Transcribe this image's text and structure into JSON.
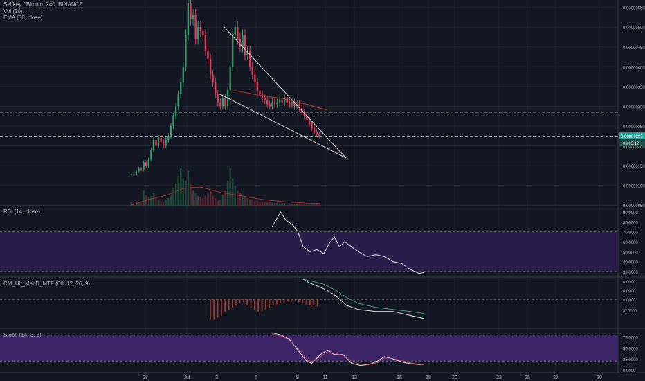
{
  "chart_title": "Selfkey / Bitcoin, 240, BINANCE",
  "chart_colors": {
    "background": "#131722",
    "grid": "#1e2230",
    "axis_text": "#b2b5be",
    "up": "#3d9970",
    "down": "#e0405a",
    "ema": "#c0392b",
    "wedge": "#d6d6d6",
    "rsi_band": "#2a1c4a",
    "stoch_band": "#3b2566",
    "macd_bars": "#a33a2e",
    "price_label": "#26a69a"
  },
  "x_axis": {
    "tick_labels": [
      "28",
      "Jul",
      "3",
      "6",
      "9",
      "11",
      "13",
      "16",
      "18",
      "20",
      "23",
      "25",
      "27",
      "30"
    ]
  },
  "price_panel": {
    "indicators": [
      "Vol (20)",
      "EMA (50, close)"
    ],
    "price_label": "0.00000225",
    "timer_label": "03:05:12",
    "y_ticks": [
      "0.00000550",
      "0.00000500",
      "0.00000450",
      "0.00000400",
      "0.00000350",
      "0.00000300",
      "0.00000250",
      "0.00000200",
      "0.00000150",
      "0.00000100",
      "0.00000050"
    ]
  },
  "rsi_panel": {
    "label": "RSI (14, close)",
    "y_ticks": [
      "90.0000",
      "80.0000",
      "70.0000",
      "60.0000",
      "50.0000",
      "40.0000",
      "30.0000"
    ]
  },
  "macd_panel": {
    "label": "CM_Ult_MacD_MTF (60, 12, 26, 9)",
    "y_ticks": [
      "0.0000",
      "0.0000",
      "0.0000",
      "-0.0000"
    ]
  },
  "stoch_panel": {
    "label": "Stoch (14, 3, 3)",
    "y_ticks": [
      "75.0000",
      "50.0000",
      "25.0000",
      "0.0000"
    ]
  },
  "chart_data": [
    {
      "type": "candlestick",
      "title": "Selfkey / Bitcoin, 240, BINANCE",
      "ylim": [
        5e-07,
        5.6e-06
      ],
      "ema_label": "EMA (50, close)",
      "volume_label": "Vol (20)",
      "close_prices": [
        1.28e-06,
        1.27e-06,
        1.35e-06,
        1.42e-06,
        1.4e-06,
        1.58e-06,
        1.48e-06,
        1.65e-06,
        1.9e-06,
        2.15e-06,
        2e-06,
        2.2e-06,
        2.1e-06,
        2e-06,
        2.15e-06,
        2.25e-06,
        2.5e-06,
        2.75e-06,
        3e-06,
        3.3e-06,
        3.6e-06,
        4e-06,
        4.8e-06,
        5.6e-06,
        5.2e-06,
        5.3e-06,
        4.7e-06,
        5e-06,
        4.9e-06,
        4.8e-06,
        4.4e-06,
        4.2e-06,
        3.8e-06,
        3.6e-06,
        3.3e-06,
        3.1e-06,
        3e-06,
        3.2e-06,
        3e-06,
        3.4e-06,
        4e-06,
        4.8e-06,
        5e-06,
        4.7e-06,
        4.5e-06,
        4.8e-06,
        4.3e-06,
        4.4e-06,
        4e-06,
        3.8e-06,
        3.6e-06,
        3.4e-06,
        3.3e-06,
        3.2e-06,
        3.15e-06,
        3.05e-06,
        3e-06,
        3.1e-06,
        3.05e-06,
        3.1e-06,
        3.15e-06,
        3.1e-06,
        3.2e-06,
        3.1e-06,
        3.05e-06,
        3.1e-06,
        3e-06,
        3.05e-06,
        2.95e-06,
        2.85e-06,
        2.75e-06,
        2.65e-06,
        2.55e-06,
        2.45e-06,
        2.35e-06,
        2.28e-06,
        2.25e-06
      ],
      "ema_points": [
        [
          118,
          3.4e-06
        ],
        [
          130,
          3.3e-06
        ],
        [
          145,
          3.2e-06
        ],
        [
          160,
          3.05e-06
        ],
        [
          172,
          2.9e-06
        ]
      ],
      "volume_scale": [
        0,
        1
      ],
      "volumes": [
        0.08,
        0.06,
        0.07,
        0.05,
        0.06,
        0.3,
        0.22,
        0.18,
        0.2,
        0.25,
        0.15,
        0.12,
        0.1,
        0.08,
        0.12,
        0.15,
        0.2,
        0.35,
        0.45,
        0.6,
        0.75,
        0.55,
        0.5,
        0.7,
        0.45,
        0.3,
        0.25,
        0.2,
        0.18,
        0.15,
        0.2,
        0.25,
        0.3,
        0.2,
        0.15,
        0.1,
        0.12,
        0.22,
        0.3,
        0.5,
        0.75,
        0.55,
        0.4,
        0.3,
        0.25,
        0.2,
        0.18,
        0.15,
        0.12,
        0.12,
        0.1,
        0.1,
        0.08,
        0.08,
        0.08,
        0.07,
        0.07,
        0.06,
        0.06,
        0.06,
        0.05,
        0.05,
        0.05,
        0.05,
        0.04,
        0.04,
        0.04,
        0.04,
        0.03,
        0.03,
        0.04,
        0.03,
        0.03,
        0.03,
        0.03,
        0.03,
        0.02
      ],
      "wedge": {
        "upper": [
          [
            105,
            5.1e-06
          ],
          [
            178,
            2e-06
          ]
        ],
        "lower": [
          [
            96,
            3.45e-06
          ],
          [
            178,
            2e-06
          ]
        ]
      },
      "h_lines": [
        2.85e-06,
        2.23e-06
      ]
    },
    {
      "type": "line",
      "title": "RSI (14, close)",
      "ylim": [
        25,
        95
      ],
      "bands": [
        30,
        70
      ],
      "points": [
        [
          80,
          75
        ],
        [
          85,
          90
        ],
        [
          88,
          82
        ],
        [
          92,
          77
        ],
        [
          95,
          70
        ],
        [
          98,
          55
        ],
        [
          102,
          50
        ],
        [
          106,
          52
        ],
        [
          110,
          48
        ],
        [
          113,
          58
        ],
        [
          116,
          65
        ],
        [
          119,
          55
        ],
        [
          122,
          60
        ],
        [
          126,
          55
        ],
        [
          130,
          50
        ],
        [
          135,
          45
        ],
        [
          140,
          47
        ],
        [
          145,
          45
        ],
        [
          150,
          40
        ],
        [
          155,
          38
        ],
        [
          160,
          32
        ],
        [
          165,
          28
        ],
        [
          168,
          29
        ]
      ]
    },
    {
      "type": "bar",
      "title": "CM_Ult_MacD_MTF (60, 12, 26, 9)",
      "ylim": [
        -1.4,
        1.0
      ],
      "histogram": [
        -1.0,
        -1.0,
        -0.9,
        -0.8,
        -0.6,
        -0.5,
        -0.4,
        -0.3,
        -0.2,
        -0.15,
        -0.3,
        -0.4,
        -0.5,
        -0.6,
        -0.6,
        -0.5,
        -0.4,
        -0.3,
        -0.25,
        -0.2,
        -0.15,
        -0.1,
        -0.1,
        -0.1,
        -0.15,
        -0.2,
        -0.25,
        -0.3,
        -0.3,
        -0.35
      ],
      "macd_line": [
        [
          98,
          1.0
        ],
        [
          102,
          0.8
        ],
        [
          108,
          0.6
        ],
        [
          113,
          0.4
        ],
        [
          118,
          0.1
        ],
        [
          123,
          -0.3
        ],
        [
          130,
          -0.5
        ],
        [
          140,
          -0.6
        ],
        [
          150,
          -0.6
        ],
        [
          160,
          -0.8
        ],
        [
          168,
          -0.95
        ]
      ],
      "signal_line": [
        [
          98,
          1.0
        ],
        [
          103,
          0.9
        ],
        [
          110,
          0.75
        ],
        [
          118,
          0.4
        ],
        [
          123,
          0.1
        ],
        [
          130,
          -0.2
        ],
        [
          140,
          -0.4
        ],
        [
          150,
          -0.5
        ],
        [
          160,
          -0.6
        ],
        [
          168,
          -0.7
        ]
      ]
    },
    {
      "type": "line",
      "title": "Stoch (14, 3, 3)",
      "ylim": [
        -5,
        90
      ],
      "bands": [
        20,
        80
      ],
      "k_points": [
        [
          80,
          85
        ],
        [
          85,
          80
        ],
        [
          90,
          70
        ],
        [
          95,
          45
        ],
        [
          100,
          20
        ],
        [
          103,
          15
        ],
        [
          108,
          35
        ],
        [
          112,
          45
        ],
        [
          116,
          35
        ],
        [
          121,
          35
        ],
        [
          126,
          15
        ],
        [
          131,
          10
        ],
        [
          136,
          12
        ],
        [
          141,
          20
        ],
        [
          145,
          30
        ],
        [
          150,
          25
        ],
        [
          155,
          18
        ],
        [
          160,
          14
        ],
        [
          165,
          12
        ],
        [
          168,
          12
        ]
      ],
      "d_points": [
        [
          80,
          82
        ],
        [
          85,
          78
        ],
        [
          90,
          68
        ],
        [
          95,
          48
        ],
        [
          100,
          25
        ],
        [
          103,
          18
        ],
        [
          108,
          30
        ],
        [
          112,
          42
        ],
        [
          116,
          38
        ],
        [
          121,
          33
        ],
        [
          126,
          20
        ],
        [
          131,
          13
        ],
        [
          136,
          12
        ],
        [
          141,
          17
        ],
        [
          145,
          27
        ],
        [
          150,
          26
        ],
        [
          155,
          21
        ],
        [
          160,
          16
        ],
        [
          165,
          13
        ],
        [
          168,
          12
        ]
      ]
    }
  ]
}
